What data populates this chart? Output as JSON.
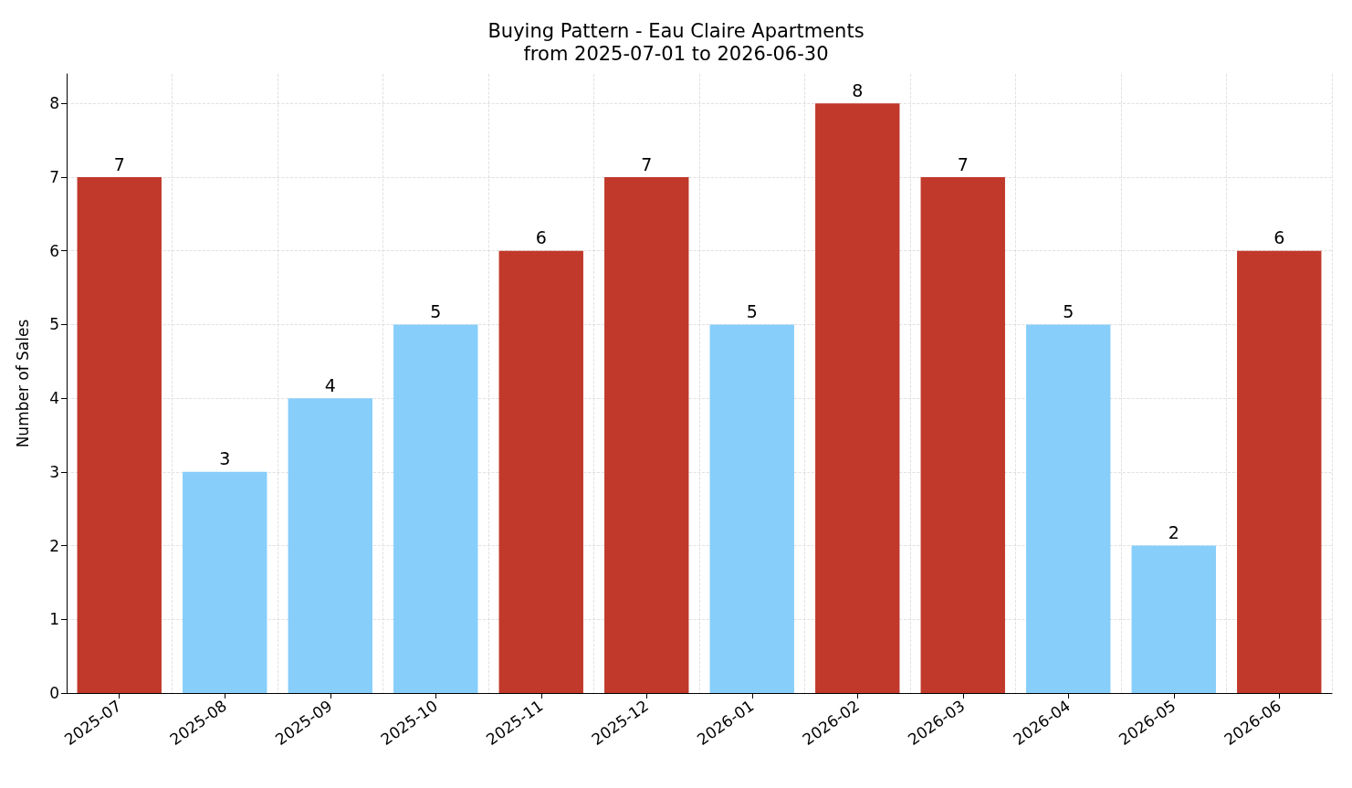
{
  "chart_data": {
    "type": "bar",
    "title": "Buying Pattern - Eau Claire Apartments",
    "subtitle": "from 2025-07-01 to 2026-06-30",
    "ylabel": "Number of Sales",
    "categories": [
      "2025-07",
      "2025-08",
      "2025-09",
      "2025-10",
      "2025-11",
      "2025-12",
      "2026-01",
      "2026-02",
      "2026-03",
      "2026-04",
      "2026-05",
      "2026-06"
    ],
    "values": [
      7,
      3,
      4,
      5,
      6,
      7,
      5,
      8,
      7,
      5,
      2,
      6
    ],
    "colors": [
      "#c0392b",
      "#87cefa",
      "#87cefa",
      "#87cefa",
      "#c0392b",
      "#c0392b",
      "#87cefa",
      "#c0392b",
      "#c0392b",
      "#87cefa",
      "#87cefa",
      "#c0392b"
    ],
    "ylim": [
      0,
      8.4
    ],
    "yticks": [
      0,
      1,
      2,
      3,
      4,
      5,
      6,
      7,
      8
    ],
    "grid": true,
    "data_labels": true
  }
}
